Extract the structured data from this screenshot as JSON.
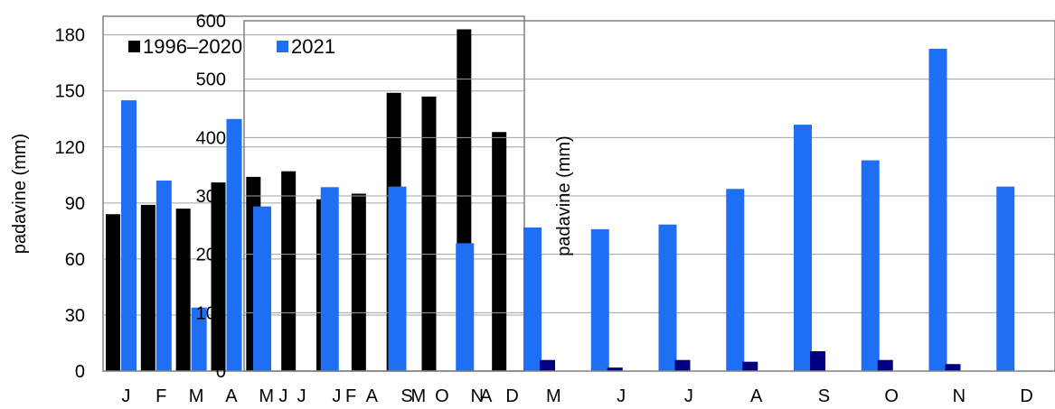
{
  "chart_data": [
    {
      "type": "bar",
      "ylabel": "padavine (mm)",
      "ylim": [
        0,
        190
      ],
      "yticks": [
        "0",
        "30",
        "60",
        "90",
        "120",
        "150",
        "180"
      ],
      "grid": true,
      "legend_position": "top-left",
      "categories": [
        "J",
        "F",
        "M",
        "A",
        "M",
        "J",
        "J",
        "A",
        "S",
        "O",
        "N",
        "D"
      ],
      "series": [
        {
          "name": "1996–2020",
          "color": "#000000",
          "values": [
            84,
            89,
            87,
            101,
            104,
            107,
            92,
            95,
            149,
            147,
            183,
            128
          ]
        },
        {
          "name": "2021",
          "color": "#1f6ff5",
          "values": [
            145,
            102,
            34,
            135,
            null,
            null,
            null,
            null,
            null,
            null,
            null,
            null
          ]
        }
      ]
    },
    {
      "type": "bar",
      "ylabel": "padavine (mm)",
      "ylim": [
        0,
        600
      ],
      "yticks": [
        "0",
        "100",
        "200",
        "300",
        "400",
        "500",
        "600"
      ],
      "grid": true,
      "categories": [
        "J",
        "F",
        "M",
        "A",
        "M",
        "J",
        "J",
        "A",
        "S",
        "O",
        "N",
        "D"
      ],
      "series": [
        {
          "color": "#1f6ff5",
          "values": [
            282,
            315,
            316,
            219,
            246,
            243,
            251,
            312,
            422,
            361,
            552,
            316
          ]
        },
        {
          "color": "#000080",
          "values": [
            0,
            0,
            0,
            0,
            19,
            6,
            19,
            16,
            34,
            19,
            12,
            0
          ]
        }
      ]
    }
  ]
}
